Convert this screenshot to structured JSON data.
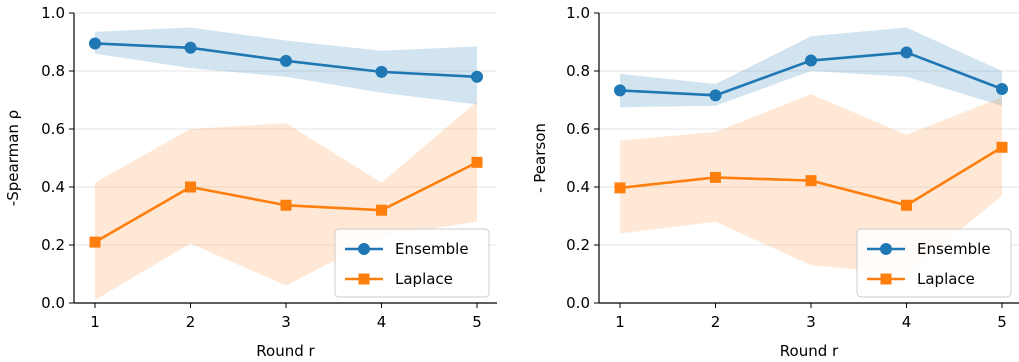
{
  "chart_data": [
    {
      "type": "line",
      "title": "",
      "xlabel": "Round r",
      "ylabel": "-Spearman ρ",
      "x": [
        1,
        2,
        3,
        4,
        5
      ],
      "xticks": [
        "1",
        "2",
        "3",
        "4",
        "5"
      ],
      "ylim": [
        0.0,
        1.0
      ],
      "yticks": [
        "0.0",
        "0.2",
        "0.4",
        "0.6",
        "0.8",
        "1.0"
      ],
      "grid": "horizontal",
      "legend_position": "lower-right",
      "series": [
        {
          "name": "Ensemble",
          "color": "#1f77b4",
          "marker": "circle",
          "values": [
            0.895,
            0.88,
            0.835,
            0.797,
            0.78
          ],
          "band_low": [
            0.86,
            0.81,
            0.78,
            0.725,
            0.685
          ],
          "band_high": [
            0.935,
            0.95,
            0.905,
            0.87,
            0.885
          ]
        },
        {
          "name": "Laplace",
          "color": "#ff7f0e",
          "marker": "square",
          "values": [
            0.21,
            0.4,
            0.337,
            0.32,
            0.485
          ],
          "band_low": [
            0.01,
            0.205,
            0.06,
            0.23,
            0.28
          ],
          "band_high": [
            0.415,
            0.6,
            0.62,
            0.415,
            0.695
          ]
        }
      ]
    },
    {
      "type": "line",
      "title": "",
      "xlabel": "Round r",
      "ylabel": "- Pearson",
      "x": [
        1,
        2,
        3,
        4,
        5
      ],
      "xticks": [
        "1",
        "2",
        "3",
        "4",
        "5"
      ],
      "ylim": [
        0.0,
        1.0
      ],
      "yticks": [
        "0.0",
        "0.2",
        "0.4",
        "0.6",
        "0.8",
        "1.0"
      ],
      "grid": "horizontal",
      "legend_position": "lower-right",
      "series": [
        {
          "name": "Ensemble",
          "color": "#1f77b4",
          "marker": "circle",
          "values": [
            0.733,
            0.716,
            0.836,
            0.864,
            0.738
          ],
          "band_low": [
            0.675,
            0.68,
            0.8,
            0.78,
            0.68
          ],
          "band_high": [
            0.79,
            0.755,
            0.92,
            0.95,
            0.8
          ]
        },
        {
          "name": "Laplace",
          "color": "#ff7f0e",
          "marker": "square",
          "values": [
            0.397,
            0.433,
            0.422,
            0.337,
            0.537
          ],
          "band_low": [
            0.24,
            0.28,
            0.13,
            0.1,
            0.37
          ],
          "band_high": [
            0.56,
            0.59,
            0.72,
            0.58,
            0.71
          ]
        }
      ]
    }
  ]
}
